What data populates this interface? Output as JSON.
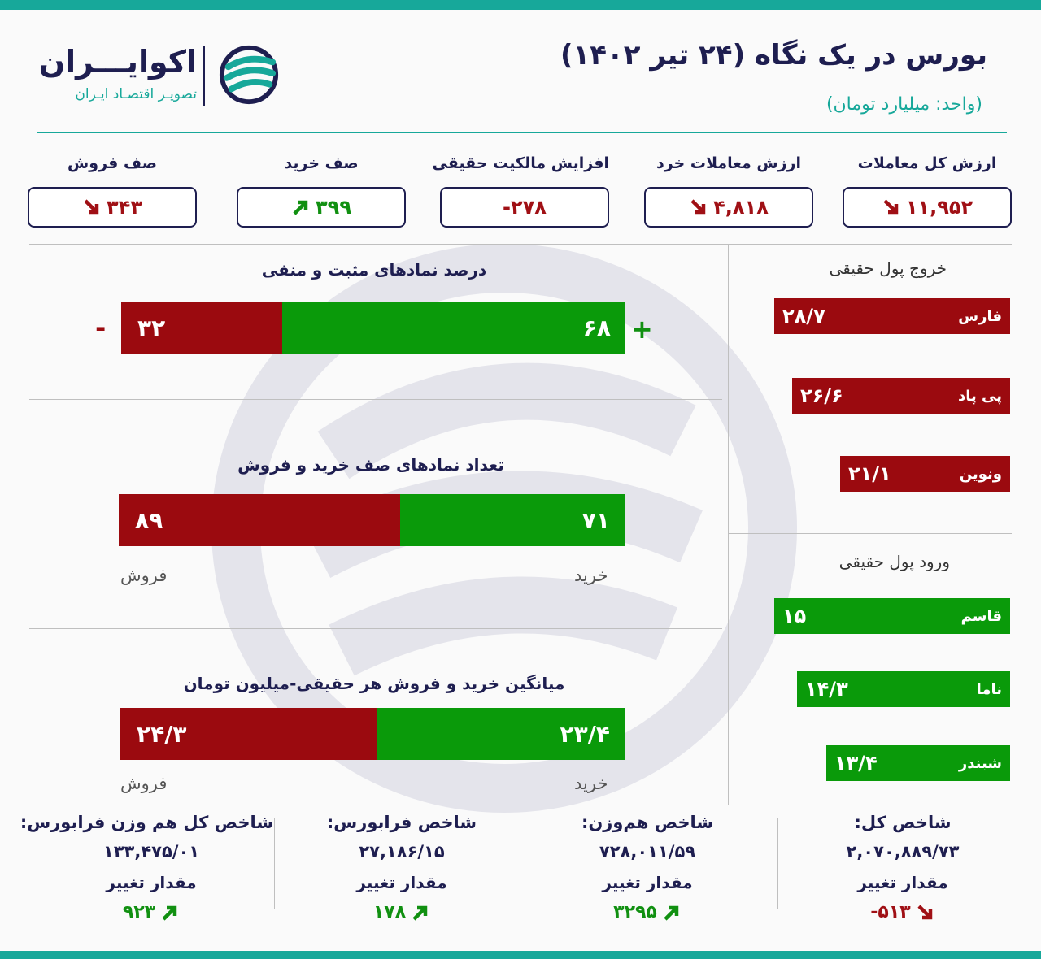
{
  "header": {
    "title": "بورس در یک نگاه (۲۴ تیر ۱۴۰۲)",
    "unit": "(واحد: میلیارد تومان)",
    "logo_name": "اکوایـــران",
    "logo_tagline": "تصویـر اقتصـاد ایـران"
  },
  "stats": [
    {
      "label": "ارزش کل معاملات",
      "value": "۱۱,۹۵۲",
      "trend": "down"
    },
    {
      "label": "ارزش معاملات خرد",
      "value": "۴,۸۱۸",
      "trend": "down"
    },
    {
      "label": "افزایش مالکیت حقیقی",
      "value": "-۲۷۸",
      "trend": "none"
    },
    {
      "label": "صف خرید",
      "value": "۳۹۹",
      "trend": "up"
    },
    {
      "label": "صف فروش",
      "value": "۳۴۳",
      "trend": "down"
    }
  ],
  "percent_section": {
    "title": "درصد نمادهای مثبت و منفی",
    "positive": 68,
    "positive_label": "۶۸",
    "negative": 32,
    "negative_label": "۳۲",
    "plus_sign": "+",
    "minus_sign": "-"
  },
  "queue_section": {
    "title": "تعداد نمادهای صف خرید و فروش",
    "buy": 71,
    "buy_label": "۷۱",
    "sell": 89,
    "sell_label": "۸۹",
    "buy_caption": "خرید",
    "sell_caption": "فروش"
  },
  "avg_section": {
    "title": "میانگین خرید و فروش هر حقیقی-میلیون تومان",
    "buy": 23.4,
    "buy_label": "۲۳/۴",
    "sell": 24.3,
    "sell_label": "۲۴/۳",
    "buy_caption": "خرید",
    "sell_caption": "فروش"
  },
  "outflow": {
    "title": "خروج پول حقیقی",
    "items": [
      {
        "name": "فارس",
        "value": 28.7,
        "label": "۲۸/۷"
      },
      {
        "name": "پی پاد",
        "value": 26.6,
        "label": "۲۶/۶"
      },
      {
        "name": "ونوین",
        "value": 21.1,
        "label": "۲۱/۱"
      }
    ]
  },
  "inflow": {
    "title": "ورود پول حقیقی",
    "items": [
      {
        "name": "قاسم",
        "value": 15,
        "label": "۱۵"
      },
      {
        "name": "ناما",
        "value": 14.3,
        "label": "۱۴/۳"
      },
      {
        "name": "شبندر",
        "value": 13.4,
        "label": "۱۳/۴"
      }
    ]
  },
  "indices": [
    {
      "name": "شاخص کل:",
      "value": "۲,۰۷۰,۸۸۹/۷۳",
      "change_label": "مقدار تغییر",
      "change": "-۵۱۳",
      "trend": "down"
    },
    {
      "name": "شاخص هم‌وزن:",
      "value": "۷۲۸,۰۱۱/۵۹",
      "change_label": "مقدار تغییر",
      "change": "۳۲۹۵",
      "trend": "up"
    },
    {
      "name": "شاخص فرابورس:",
      "value": "۲۷,۱۸۶/۱۵",
      "change_label": "مقدار تغییر",
      "change": "۱۷۸",
      "trend": "up"
    },
    {
      "name": "شاخص کل هم وزن فرابورس:",
      "value": "۱۳۳,۴۷۵/۰۱",
      "change_label": "مقدار تغییر",
      "change": "۹۲۳",
      "trend": "up"
    }
  ],
  "colors": {
    "accent": "#17a89a",
    "navy": "#1e1e50",
    "up": "#0a9a0a",
    "down": "#9b0a0f"
  }
}
